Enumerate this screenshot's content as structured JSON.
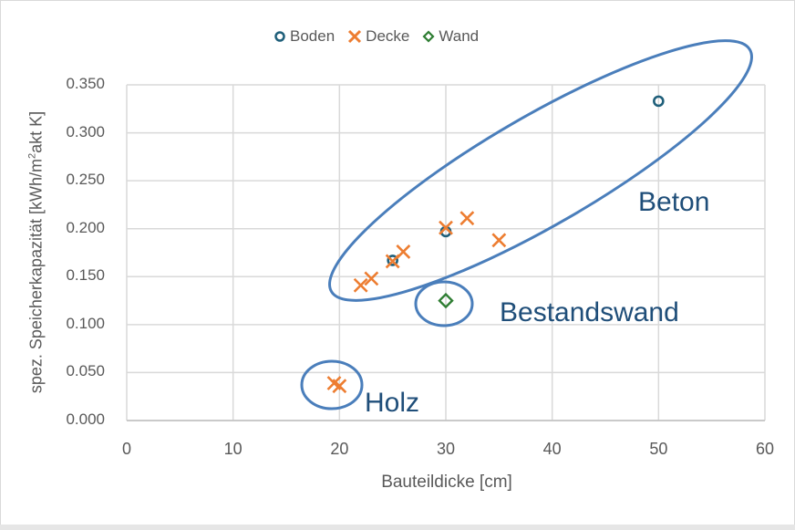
{
  "chart_data": {
    "type": "scatter",
    "title": "",
    "xlabel": "Bauteildicke [cm]",
    "ylabel": "spez. Speicherkapazität [kWh/m²akt K]",
    "ylabel_parts": {
      "pre": "spez. Speicherkapazität [kWh/m",
      "sup": "2",
      "post": "akt K]"
    },
    "xlim": [
      0,
      60
    ],
    "ylim": [
      0,
      0.35
    ],
    "xticks": [
      "0",
      "10",
      "20",
      "30",
      "40",
      "50",
      "60"
    ],
    "yticks": [
      "0.000",
      "0.050",
      "0.100",
      "0.150",
      "0.200",
      "0.250",
      "0.300",
      "0.350"
    ],
    "grid": true,
    "legend_position": "top",
    "series": [
      {
        "name": "Boden",
        "marker": "circle",
        "color": "#1f5f7a",
        "points": [
          [
            25,
            0.167
          ],
          [
            30,
            0.197
          ],
          [
            50,
            0.333
          ]
        ]
      },
      {
        "name": "Decke",
        "marker": "x",
        "color": "#ed7d31",
        "points": [
          [
            22,
            0.141
          ],
          [
            23,
            0.148
          ],
          [
            25,
            0.166
          ],
          [
            26,
            0.176
          ],
          [
            30,
            0.201
          ],
          [
            32,
            0.211
          ],
          [
            35,
            0.188
          ],
          [
            19.5,
            0.039
          ],
          [
            20,
            0.036
          ]
        ]
      },
      {
        "name": "Wand",
        "marker": "diamond",
        "color": "#2e7d32",
        "points": [
          [
            30,
            0.125
          ]
        ]
      }
    ],
    "annotations": [
      {
        "label": "Beton",
        "type": "ellipse-group"
      },
      {
        "label": "Bestandswand",
        "type": "ellipse-group"
      },
      {
        "label": "Holz",
        "type": "ellipse-group"
      }
    ]
  },
  "legend": {
    "boden": "Boden",
    "decke": "Decke",
    "wand": "Wand"
  },
  "annotations": {
    "beton": "Beton",
    "bestandswand": "Bestandswand",
    "holz": "Holz"
  }
}
